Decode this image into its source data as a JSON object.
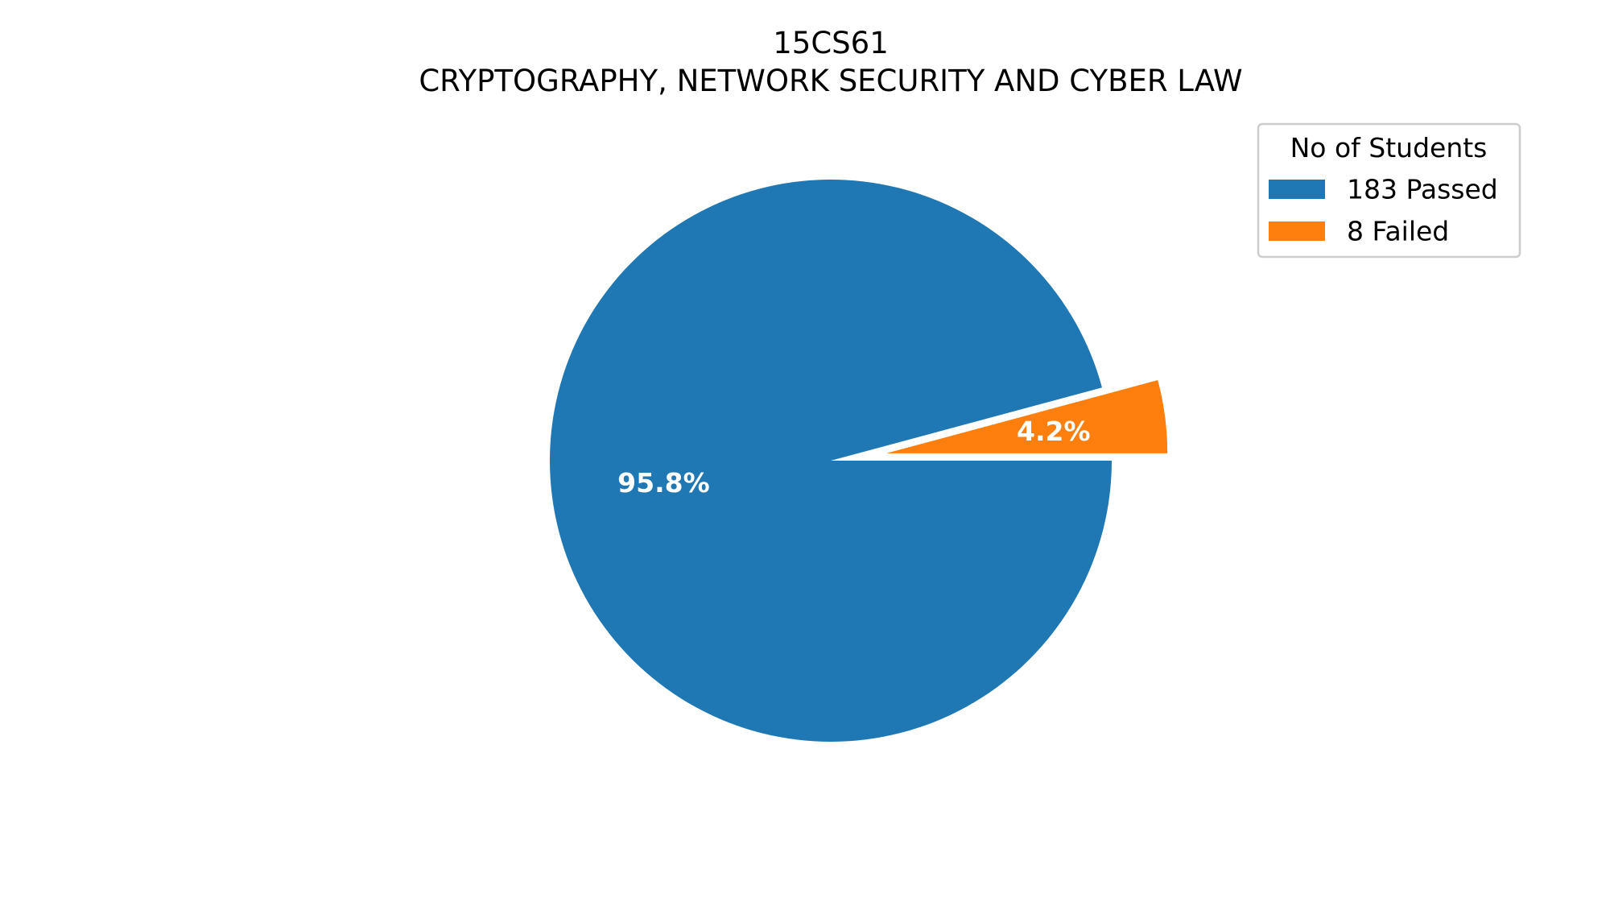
{
  "chart_data": {
    "type": "pie",
    "title_line1": "15CS61",
    "title_line2": "CRYPTOGRAPHY, NETWORK SECURITY AND CYBER LAW",
    "legend_title": "No of Students",
    "legend_placement": "top-right",
    "start_angle_deg": 0,
    "direction": "clockwise",
    "slices": [
      {
        "label": "183 Passed",
        "value": 183,
        "percent_label": "95.8%",
        "color": "#1f77b4",
        "exploded": false
      },
      {
        "label": "8 Failed",
        "value": 8,
        "percent_label": "4.2%",
        "color": "#ff7f0e",
        "exploded": true
      }
    ]
  }
}
